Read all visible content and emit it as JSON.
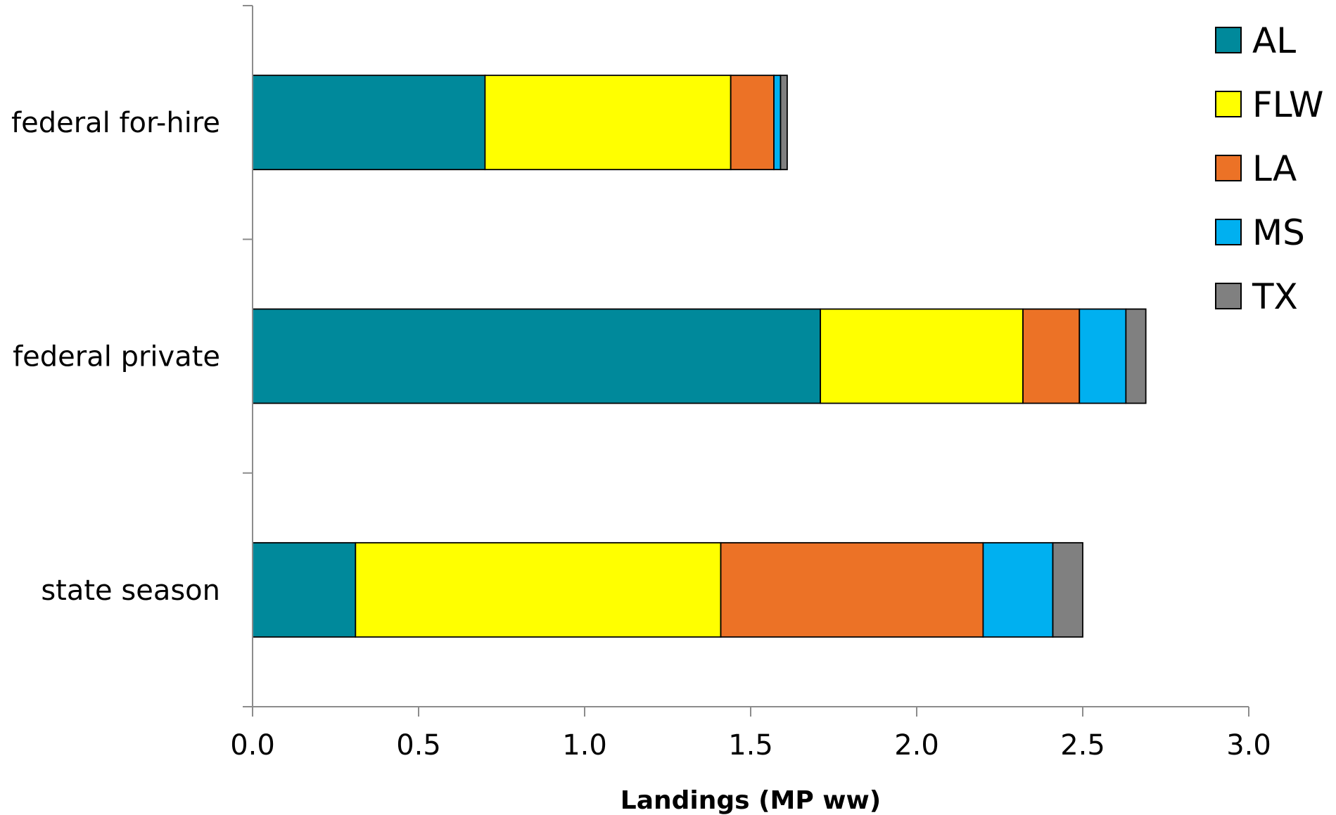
{
  "chart_data": {
    "type": "bar",
    "orientation": "horizontal",
    "stacked": true,
    "categories": [
      "federal for-hire",
      "federal private",
      "state season"
    ],
    "series": [
      {
        "name": "AL",
        "color": "#00899b",
        "values": [
          0.7,
          1.71,
          0.31
        ]
      },
      {
        "name": "FLW",
        "color": "#ffff00",
        "values": [
          0.74,
          0.61,
          1.1
        ]
      },
      {
        "name": "LA",
        "color": "#ec7226",
        "values": [
          0.13,
          0.17,
          0.79
        ]
      },
      {
        "name": "MS",
        "color": "#00b0f0",
        "values": [
          0.02,
          0.14,
          0.21
        ]
      },
      {
        "name": "TX",
        "color": "#808080",
        "values": [
          0.02,
          0.06,
          0.09
        ]
      }
    ],
    "xlabel": "Landings (MP ww)",
    "ylabel": "",
    "xlim": [
      0,
      3.0
    ],
    "xticks": [
      "0.0",
      "0.5",
      "1.0",
      "1.5",
      "2.0",
      "2.5",
      "3.0"
    ],
    "grid": false,
    "legend_position": "top-right"
  }
}
